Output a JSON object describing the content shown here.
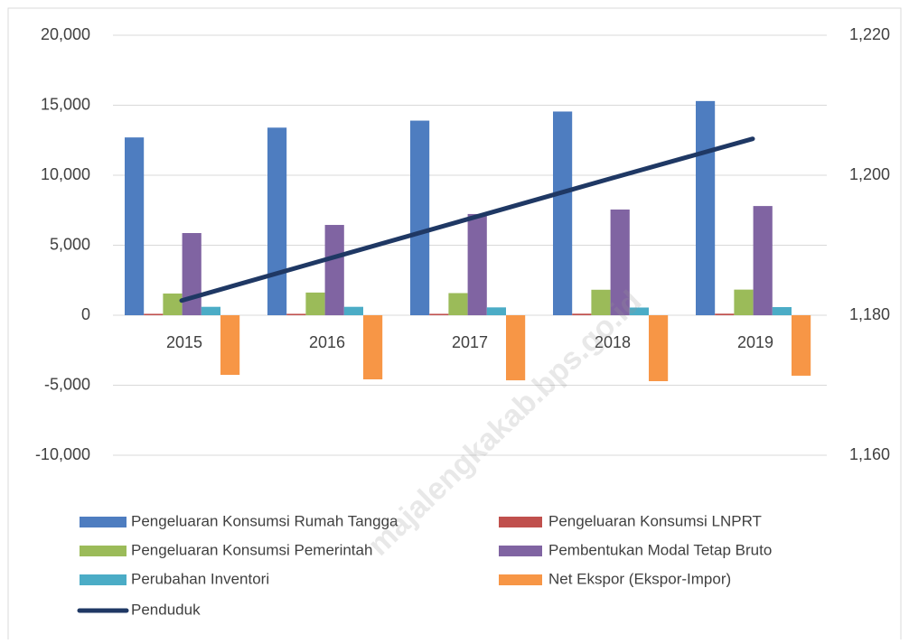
{
  "chart_data": {
    "type": "bar",
    "watermark": "majalengkakab.bps.go.id",
    "categories": [
      "2015",
      "2016",
      "2017",
      "2018",
      "2019"
    ],
    "series": [
      {
        "name": "Pengeluaran Konsumsi Rumah Tangga",
        "color": "#4e7dc0",
        "values": [
          12700,
          13400,
          13900,
          14550,
          15300
        ]
      },
      {
        "name": "Pengeluaran Konsumsi LNPRT",
        "color": "#c0504d",
        "values": [
          100,
          100,
          100,
          110,
          110
        ]
      },
      {
        "name": "Pengeluaran Konsumsi Pemerintah",
        "color": "#9bbb59",
        "values": [
          1550,
          1620,
          1580,
          1820,
          1830
        ]
      },
      {
        "name": "Pembentukan Modal Tetap Bruto",
        "color": "#8064a2",
        "values": [
          5870,
          6450,
          7230,
          7550,
          7800
        ]
      },
      {
        "name": "Perubahan Inventori",
        "color": "#4bacc6",
        "values": [
          600,
          600,
          560,
          550,
          580
        ]
      },
      {
        "name": "Net Ekspor (Ekspor-Impor)",
        "color": "#f79646",
        "values": [
          -4260,
          -4580,
          -4650,
          -4710,
          -4320
        ]
      },
      {
        "name": "Penduduk",
        "color": "#1f3864",
        "type": "line",
        "axis": "y2",
        "values": [
          1182.1,
          1187.9,
          1193.7,
          1199.5,
          1205.2
        ]
      }
    ],
    "ylim": [
      -10000,
      20000
    ],
    "yticks": [
      {
        "value": -10000,
        "label": "-10,000"
      },
      {
        "value": -5000,
        "label": "-5,000"
      },
      0,
      {
        "value": 5000,
        "label": "5,000"
      },
      {
        "value": 10000,
        "label": "10,000"
      },
      {
        "value": 15000,
        "label": "15,000"
      },
      {
        "value": 20000,
        "label": "20,000"
      }
    ],
    "y2lim": [
      1160,
      1220
    ],
    "y2ticks": [
      {
        "value": 1160,
        "label": "1,160"
      },
      {
        "value": 1180,
        "label": "1,180"
      },
      {
        "value": 1200,
        "label": "1,200"
      },
      {
        "value": 1220,
        "label": "1,220"
      }
    ],
    "grid": true,
    "legend": "bottom"
  }
}
